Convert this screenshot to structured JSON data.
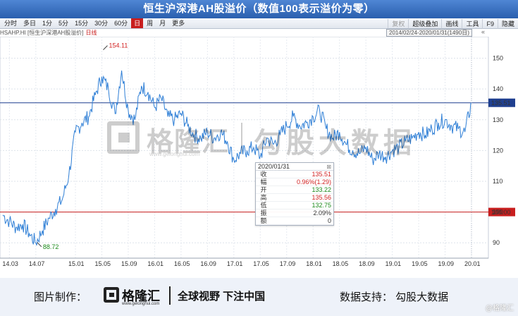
{
  "title": "恒生沪深港AH股溢价（数值100表示溢价为零）",
  "toolbar": {
    "periods": [
      "分时",
      "多日",
      "1分",
      "5分",
      "15分",
      "30分",
      "60分",
      "日",
      "周",
      "月",
      "更多"
    ],
    "active_period": "日",
    "right_buttons": [
      "复权",
      "超级叠加",
      "画线",
      "工具",
      "F9",
      "隐藏"
    ],
    "dim_button": "复权"
  },
  "info": {
    "code_label": "HSAHP.HI [恒生沪深港AH股溢价]",
    "cycle": "日线",
    "range": "2014/02/24-2020/01/31(1490日)",
    "chevron": "«"
  },
  "chart_data": {
    "type": "line",
    "title": "恒生沪深港AH股溢价（数值100表示溢价为零）",
    "xlabel": "",
    "ylabel": "",
    "x": [
      "2014-02",
      "2014-03",
      "2014-04",
      "2014-05",
      "2014-06",
      "2014-07",
      "2014-08",
      "2014-09",
      "2014-10",
      "2014-11",
      "2014-12",
      "2015-01",
      "2015-02",
      "2015-03",
      "2015-04",
      "2015-05",
      "2015-06",
      "2015-07",
      "2015-08",
      "2015-09",
      "2015-10",
      "2015-11",
      "2015-12",
      "2016-01",
      "2016-02",
      "2016-03",
      "2016-04",
      "2016-05",
      "2016-06",
      "2016-07",
      "2016-08",
      "2016-09",
      "2016-10",
      "2016-11",
      "2016-12",
      "2017-01",
      "2017-02",
      "2017-03",
      "2017-04",
      "2017-05",
      "2017-06",
      "2017-07",
      "2017-08",
      "2017-09",
      "2017-10",
      "2017-11",
      "2017-12",
      "2018-01",
      "2018-02",
      "2018-03",
      "2018-04",
      "2018-05",
      "2018-06",
      "2018-07",
      "2018-08",
      "2018-09",
      "2018-10",
      "2018-11",
      "2018-12",
      "2019-01",
      "2019-02",
      "2019-03",
      "2019-04",
      "2019-05",
      "2019-06",
      "2019-07",
      "2019-08",
      "2019-09",
      "2019-10",
      "2019-11",
      "2019-12",
      "2020-01"
    ],
    "values": [
      99,
      97,
      95,
      96,
      93,
      90,
      94,
      98,
      101,
      104,
      112,
      126,
      129,
      131,
      138,
      144,
      140,
      132,
      146,
      133,
      130,
      141,
      139,
      134,
      137,
      131,
      130,
      132,
      128,
      125,
      124,
      126,
      124,
      126,
      123,
      117,
      119,
      120,
      121,
      118,
      124,
      122,
      125,
      128,
      131,
      128,
      129,
      131,
      133,
      127,
      124,
      126,
      122,
      120,
      119,
      121,
      117,
      119,
      118,
      120,
      121,
      123,
      124,
      126,
      125,
      127,
      129,
      130,
      128,
      127,
      126,
      135.51
    ],
    "ylim": [
      85,
      157
    ],
    "yticks": [
      90,
      100,
      110,
      120,
      130,
      140,
      150
    ],
    "xticks": [
      {
        "label": "14.03",
        "x": "2014-03"
      },
      {
        "label": "14.07",
        "x": "2014-07"
      },
      {
        "label": "15.01",
        "x": "2015-01"
      },
      {
        "label": "15.05",
        "x": "2015-05"
      },
      {
        "label": "15.09",
        "x": "2015-09"
      },
      {
        "label": "16.01",
        "x": "2016-01"
      },
      {
        "label": "16.05",
        "x": "2016-05"
      },
      {
        "label": "16.09",
        "x": "2016-09"
      },
      {
        "label": "17.01",
        "x": "2017-01"
      },
      {
        "label": "17.05",
        "x": "2017-05"
      },
      {
        "label": "17.09",
        "x": "2017-09"
      },
      {
        "label": "18.01",
        "x": "2018-01"
      },
      {
        "label": "18.05",
        "x": "2018-05"
      },
      {
        "label": "18.09",
        "x": "2018-09"
      },
      {
        "label": "19.01",
        "x": "2019-01"
      },
      {
        "label": "19.05",
        "x": "2019-05"
      },
      {
        "label": "19.09",
        "x": "2019-09"
      },
      {
        "label": "20.01",
        "x": "2020-01"
      }
    ],
    "max_marker": {
      "value": "154.11",
      "x": "2015-05"
    },
    "min_marker": {
      "value": "88.72",
      "x": "2014-07"
    },
    "reference_lines": [
      {
        "value": 135.51,
        "label": "135.51",
        "color": "#1f3f8f"
      },
      {
        "value": 100,
        "label": "100.00",
        "color": "#c81e1e"
      }
    ],
    "line_color": "#2f7fd6",
    "grid": "dashed",
    "legend": "none"
  },
  "tooltip": {
    "date": "2020/01/31",
    "close_icon": "⊠",
    "rows": [
      {
        "label": "收",
        "value": "135.51",
        "tone": "up"
      },
      {
        "label": "幅",
        "value": "0.96%(1.29)",
        "tone": "up"
      },
      {
        "label": "开",
        "value": "133.22",
        "tone": "down"
      },
      {
        "label": "高",
        "value": "135.56",
        "tone": "up"
      },
      {
        "label": "低",
        "value": "132.75",
        "tone": "down"
      },
      {
        "label": "振",
        "value": "2.09%",
        "tone": "neutral"
      },
      {
        "label": "额",
        "value": "0",
        "tone": "neutral"
      }
    ]
  },
  "watermark": {
    "brand": "格隆汇",
    "url": "www.gelonghui.com",
    "slogan": "勾股大数据"
  },
  "footer": {
    "made_by": "图片制作：",
    "brand": "格隆汇",
    "url": "www.gelonghui.com",
    "slogan": "全球视野 下注中国",
    "support": "数据支持：  勾股大数据",
    "corner": "@格隆汇"
  }
}
